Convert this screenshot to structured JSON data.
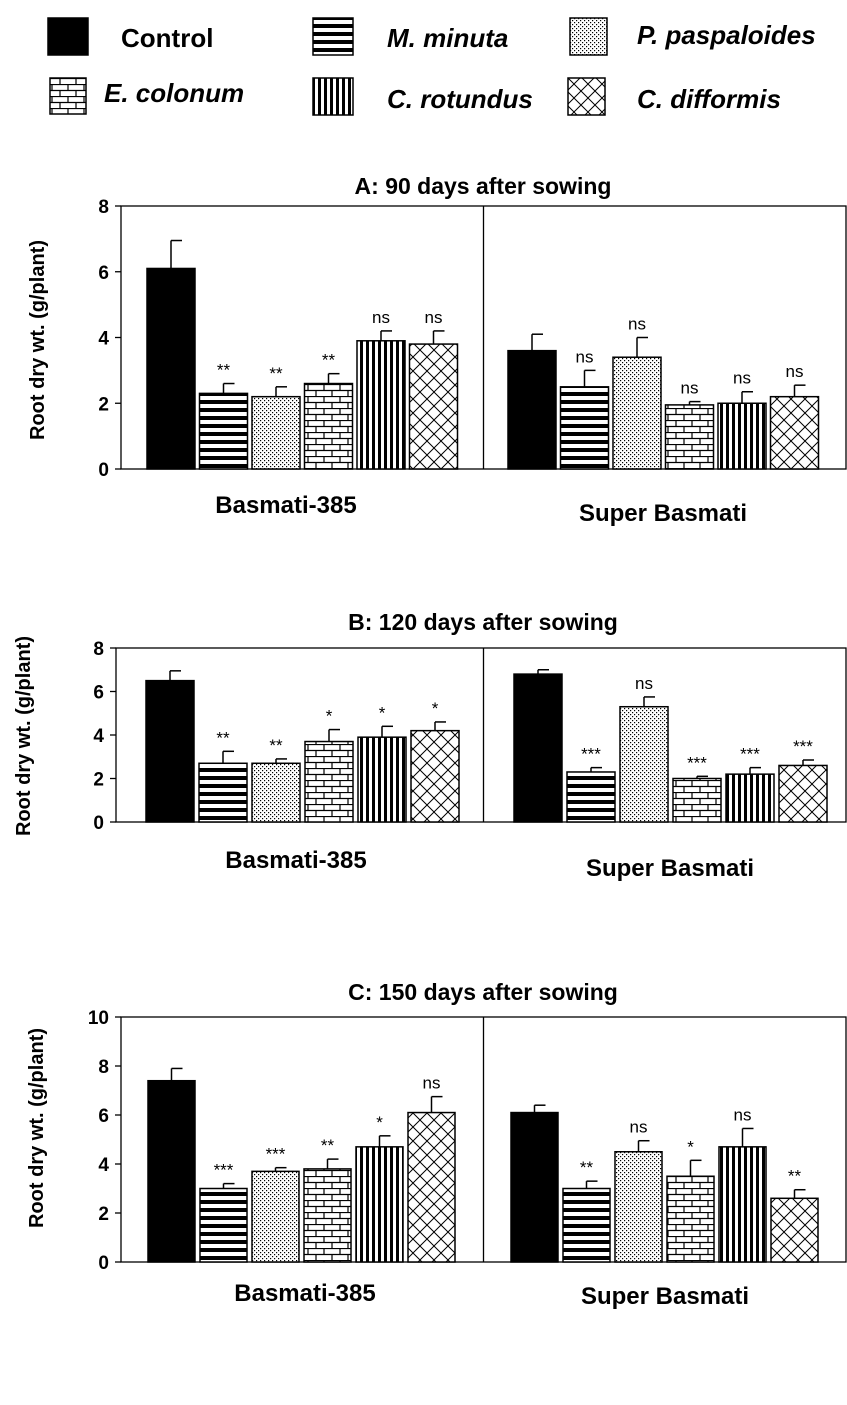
{
  "colors": {
    "bar_stroke": "#000000",
    "control_fill": "#000000",
    "background": "#ffffff"
  },
  "legend": [
    {
      "name": "Control",
      "pattern": "solid",
      "italic": false
    },
    {
      "name": "M. minuta",
      "pattern": "hstripe",
      "italic": true
    },
    {
      "name": "P. paspaloides",
      "pattern": "dots",
      "italic": true
    },
    {
      "name": "E. colonum",
      "pattern": "brick",
      "italic": true
    },
    {
      "name": "C. rotundus",
      "pattern": "vstripe",
      "italic": true
    },
    {
      "name": "C. difformis",
      "pattern": "diamond",
      "italic": true
    }
  ],
  "chart_data": [
    {
      "type": "bar",
      "title": "A: 90 days after sowing",
      "ylabel": "Root dry wt. (g/plant)",
      "ylim": [
        0,
        8
      ],
      "yticks": [
        "0",
        "2",
        "4",
        "6",
        "8"
      ],
      "categories": [
        "Basmati-385",
        "Super Basmati"
      ],
      "series": [
        {
          "name": "Control",
          "values": [
            6.1,
            3.6
          ],
          "errors": [
            0.85,
            0.5
          ],
          "sig": [
            "",
            ""
          ]
        },
        {
          "name": "M. minuta",
          "values": [
            2.3,
            2.5
          ],
          "errors": [
            0.3,
            0.5
          ],
          "sig": [
            "**",
            "ns"
          ]
        },
        {
          "name": "P. paspaloides",
          "values": [
            2.2,
            3.4
          ],
          "errors": [
            0.3,
            0.6
          ],
          "sig": [
            "**",
            "ns"
          ]
        },
        {
          "name": "E. colonum",
          "values": [
            2.6,
            1.95
          ],
          "errors": [
            0.3,
            0.1
          ],
          "sig": [
            "**",
            "ns"
          ]
        },
        {
          "name": "C. rotundus",
          "values": [
            3.9,
            2.0
          ],
          "errors": [
            0.3,
            0.35
          ],
          "sig": [
            "ns",
            "ns"
          ]
        },
        {
          "name": "C. difformis",
          "values": [
            3.8,
            2.2
          ],
          "errors": [
            0.4,
            0.35
          ],
          "sig": [
            "ns",
            "ns"
          ]
        }
      ]
    },
    {
      "type": "bar",
      "title": "B: 120 days after sowing",
      "ylabel": "Root dry wt. (g/plant)",
      "ylim": [
        0,
        8
      ],
      "yticks": [
        "0",
        "2",
        "4",
        "6",
        "8"
      ],
      "categories": [
        "Basmati-385",
        "Super Basmati"
      ],
      "series": [
        {
          "name": "Control",
          "values": [
            6.5,
            6.8
          ],
          "errors": [
            0.45,
            0.2
          ],
          "sig": [
            "",
            ""
          ]
        },
        {
          "name": "M. minuta",
          "values": [
            2.7,
            2.3
          ],
          "errors": [
            0.55,
            0.2
          ],
          "sig": [
            "**",
            "***"
          ]
        },
        {
          "name": "P. paspaloides",
          "values": [
            2.7,
            5.3
          ],
          "errors": [
            0.2,
            0.45
          ],
          "sig": [
            "**",
            "ns"
          ]
        },
        {
          "name": "E. colonum",
          "values": [
            3.7,
            2.0
          ],
          "errors": [
            0.55,
            0.1
          ],
          "sig": [
            "*",
            "***"
          ]
        },
        {
          "name": "C. rotundus",
          "values": [
            3.9,
            2.2
          ],
          "errors": [
            0.5,
            0.3
          ],
          "sig": [
            "*",
            "***"
          ]
        },
        {
          "name": "C. difformis",
          "values": [
            4.2,
            2.6
          ],
          "errors": [
            0.4,
            0.25
          ],
          "sig": [
            "*",
            "***"
          ]
        }
      ]
    },
    {
      "type": "bar",
      "title": "C: 150 days after sowing",
      "ylabel": "Root dry wt. (g/plant)",
      "ylim": [
        0,
        10
      ],
      "yticks": [
        "0",
        "2",
        "4",
        "6",
        "8",
        "10"
      ],
      "categories": [
        "Basmati-385",
        "Super Basmati"
      ],
      "series": [
        {
          "name": "Control",
          "values": [
            7.4,
            6.1
          ],
          "errors": [
            0.5,
            0.3
          ],
          "sig": [
            "",
            ""
          ]
        },
        {
          "name": "M. minuta",
          "values": [
            3.0,
            3.0
          ],
          "errors": [
            0.2,
            0.3
          ],
          "sig": [
            "***",
            "**"
          ]
        },
        {
          "name": "P. paspaloides",
          "values": [
            3.7,
            4.5
          ],
          "errors": [
            0.15,
            0.45
          ],
          "sig": [
            "***",
            "ns"
          ]
        },
        {
          "name": "E. colonum",
          "values": [
            3.8,
            3.5
          ],
          "errors": [
            0.4,
            0.65
          ],
          "sig": [
            "**",
            "*"
          ]
        },
        {
          "name": "C. rotundus",
          "values": [
            4.7,
            4.7
          ],
          "errors": [
            0.45,
            0.75
          ],
          "sig": [
            "*",
            "ns"
          ]
        },
        {
          "name": "C. difformis",
          "values": [
            6.1,
            2.6
          ],
          "errors": [
            0.65,
            0.35
          ],
          "sig": [
            "ns",
            "**"
          ]
        }
      ]
    }
  ]
}
